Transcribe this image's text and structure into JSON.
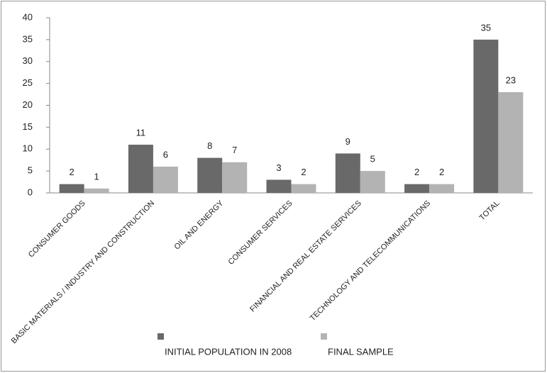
{
  "chart_data": {
    "type": "bar",
    "categories": [
      "CONSUMER GOODS",
      "BASIC MATERIALS / INDUSTRY AND CONSTRUCTION",
      "OIL AND ENERGY",
      "CONSUMER SERVICES",
      "FINANCIAL AND REAL ESTATE SERVICES",
      "TECHNOLOGY AND TELECOMMUNICATIONS",
      "TOTAL"
    ],
    "series": [
      {
        "name": "INITIAL POPULATION IN 2008",
        "color": "#696969",
        "values": [
          2,
          11,
          8,
          3,
          9,
          2,
          35
        ]
      },
      {
        "name": "FINAL SAMPLE",
        "color": "#b3b3b3",
        "values": [
          1,
          6,
          7,
          2,
          5,
          2,
          23
        ]
      }
    ],
    "ylim": [
      0,
      40
    ],
    "yticks": [
      0,
      5,
      10,
      15,
      20,
      25,
      30,
      35,
      40
    ],
    "grid": false,
    "legend": "bottom"
  }
}
